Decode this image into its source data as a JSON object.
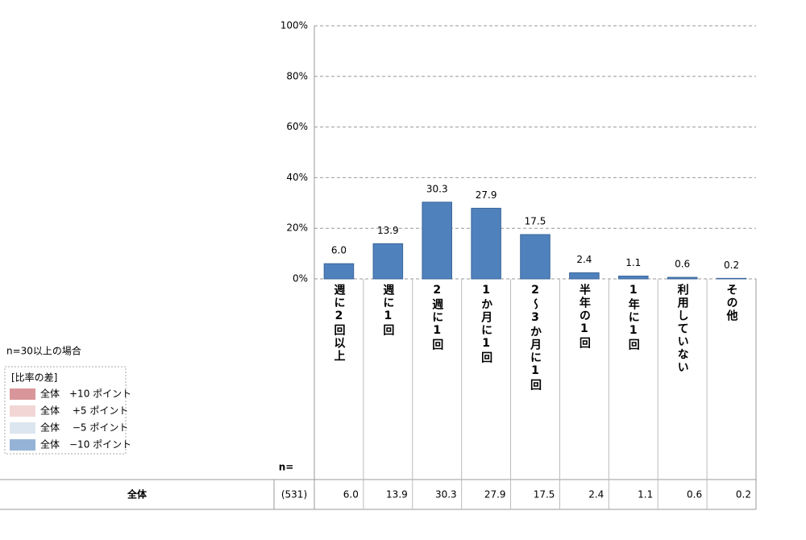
{
  "chart_data": {
    "type": "bar",
    "categories": [
      "週に2回以上",
      "週に1回",
      "2週に1回",
      "1か月に1回",
      "2～3か月に1回",
      "半年の1回",
      "1年に1回",
      "利用していない",
      "その他"
    ],
    "values": [
      6.0,
      13.9,
      30.3,
      27.9,
      17.5,
      2.4,
      1.1,
      0.6,
      0.2
    ],
    "value_labels": [
      "6.0",
      "13.9",
      "30.3",
      "27.9",
      "17.5",
      "2.4",
      "1.1",
      "0.6",
      "0.2"
    ],
    "color": "#4f81bd",
    "ylim": [
      0,
      100
    ],
    "yticks": [
      {
        "value": 0,
        "label": "0%"
      },
      {
        "value": 20,
        "label": "20%"
      },
      {
        "value": 40,
        "label": "40%"
      },
      {
        "value": 60,
        "label": "60%"
      },
      {
        "value": 80,
        "label": "80%"
      },
      {
        "value": 100,
        "label": "100%"
      }
    ],
    "grid": true
  },
  "note": "n=30以上の場合",
  "legend_box": {
    "title": "[比率の差]",
    "items": [
      {
        "label": "全体　+10 ポイント",
        "color": "#d9969a"
      },
      {
        "label": "全体　 +5 ポイント",
        "color": "#f2d6d6"
      },
      {
        "label": "全体　 −5 ポイント",
        "color": "#dce6f1"
      },
      {
        "label": "全体　−10 ポイント",
        "color": "#95b3d7"
      }
    ]
  },
  "table": {
    "n_label": "n=",
    "row_label": "全体",
    "n": "(531)"
  }
}
